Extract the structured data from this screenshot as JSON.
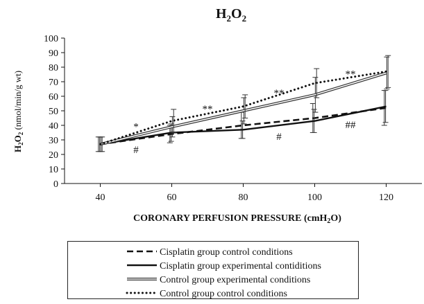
{
  "chart_data": {
    "type": "line",
    "title": "H2O2",
    "ylabel": "H2O2 (nmol/min/g wt)",
    "xlabel": "CORONARY PERFUSION PRESSURE (cmH2O)",
    "x": [
      40,
      60,
      80,
      100,
      120
    ],
    "xlim": [
      30,
      130
    ],
    "ylim": [
      0,
      100
    ],
    "yticks": [
      0,
      10,
      20,
      30,
      40,
      50,
      60,
      70,
      80,
      90,
      100
    ],
    "xticks": [
      40,
      60,
      80,
      100,
      120
    ],
    "grid": false,
    "legend_position": "bottom",
    "series": [
      {
        "name": "Cisplatin group control conditions",
        "style": "dashed",
        "values": [
          27,
          34,
          40,
          45,
          52
        ],
        "err": [
          5,
          6,
          9,
          10,
          12
        ]
      },
      {
        "name": "Cisplatin group experimental contiditions",
        "style": "solid",
        "values": [
          27,
          35,
          37,
          43,
          53
        ],
        "err": [
          5,
          6,
          6,
          8,
          11
        ]
      },
      {
        "name": "Control group experimental conditions",
        "style": "double",
        "values": [
          27,
          39,
          50,
          61,
          76
        ],
        "err": [
          5,
          7,
          9,
          12,
          11
        ]
      },
      {
        "name": "Control group control conditions",
        "style": "dotted",
        "values": [
          27,
          43,
          53,
          69,
          77
        ],
        "err": [
          5,
          8,
          8,
          10,
          11
        ]
      }
    ],
    "annotations": [
      {
        "text": "*",
        "x": 50,
        "y": 37
      },
      {
        "text": "#",
        "x": 50,
        "y": 21
      },
      {
        "text": "**",
        "x": 70,
        "y": 49
      },
      {
        "text": "**",
        "x": 90,
        "y": 60
      },
      {
        "text": "#",
        "x": 90,
        "y": 30
      },
      {
        "text": "**",
        "x": 110,
        "y": 73
      },
      {
        "text": "##",
        "x": 110,
        "y": 38
      }
    ]
  }
}
